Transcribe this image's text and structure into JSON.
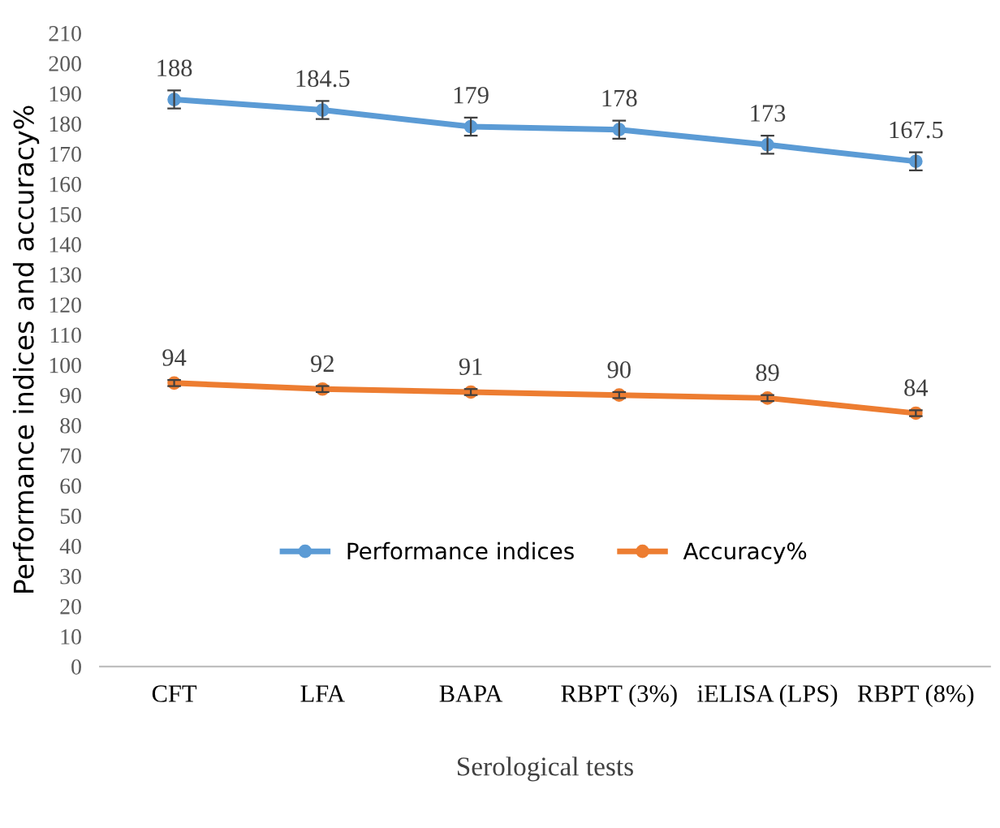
{
  "chart_data": {
    "type": "line",
    "xlabel": "Serological tests",
    "ylabel": "Performance indices and accuracy%",
    "categories": [
      "CFT",
      "LFA",
      "BAPA",
      "RBPT (3%)",
      "iELISA (LPS)",
      "RBPT (8%)"
    ],
    "series": [
      {
        "name": "Performance indices",
        "color": "#5b9bd5",
        "values": [
          188,
          184.5,
          179,
          178,
          173,
          167.5
        ],
        "errors": [
          3,
          3,
          3,
          3,
          3,
          3
        ]
      },
      {
        "name": "Accuracy%",
        "color": "#ed7d31",
        "values": [
          94,
          92,
          91,
          90,
          89,
          84
        ],
        "errors": [
          1,
          1,
          1,
          1,
          1,
          1
        ]
      }
    ],
    "ylim": [
      0,
      210
    ],
    "yticks": [
      0,
      10,
      20,
      30,
      40,
      50,
      60,
      70,
      80,
      90,
      100,
      110,
      120,
      130,
      140,
      150,
      160,
      170,
      180,
      190,
      200,
      210
    ],
    "data_labels": true,
    "legend": "bottom",
    "grid": false,
    "marker": "circle",
    "line_style": "solid"
  }
}
